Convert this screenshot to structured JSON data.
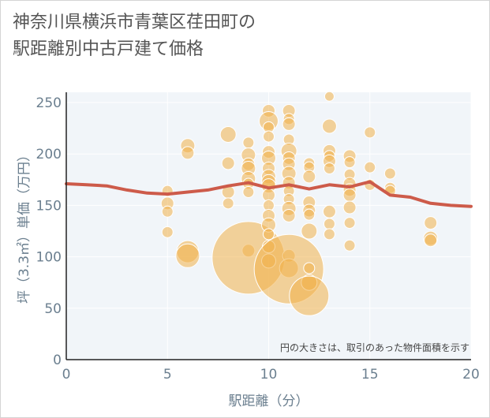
{
  "title": "神奈川県横浜市青葉区荏田町の\n駅距離別中古戸建て価格",
  "chart_data": {
    "type": "scatter",
    "title": "神奈川県横浜市青葉区荏田町の駅距離別中古戸建て価格",
    "xlabel": "駅距離（分）",
    "ylabel": "坪（3.3㎡）単価（万円）",
    "xlim": [
      0,
      20
    ],
    "ylim": [
      0,
      260
    ],
    "xticks": [
      0,
      5,
      10,
      15,
      20
    ],
    "yticks": [
      0,
      50,
      100,
      150,
      200,
      250
    ],
    "grid": true,
    "annotation": "円の大きさは、取引のあった物件面積を示す",
    "colors": {
      "bubble": "#f0b14a",
      "line": "#cd5b4a",
      "plot_bg": "#f1f5f9",
      "axis_text": "#6b7f8f"
    },
    "series": [
      {
        "type": "line",
        "points": [
          [
            0,
            171
          ],
          [
            1,
            170
          ],
          [
            2,
            169
          ],
          [
            3,
            165
          ],
          [
            4,
            162
          ],
          [
            5,
            161
          ],
          [
            6,
            163
          ],
          [
            7,
            165
          ],
          [
            8,
            169
          ],
          [
            9,
            172
          ],
          [
            10,
            167
          ],
          [
            11,
            170
          ],
          [
            12,
            166
          ],
          [
            13,
            170
          ],
          [
            14,
            168
          ],
          [
            15,
            173
          ],
          [
            16,
            160
          ],
          [
            17,
            158
          ],
          [
            18,
            152
          ],
          [
            19,
            150
          ],
          [
            20,
            149
          ]
        ]
      },
      {
        "type": "bubble",
        "points": [
          [
            5,
            164,
            7
          ],
          [
            5,
            152,
            8
          ],
          [
            5,
            144,
            7
          ],
          [
            5,
            124,
            7
          ],
          [
            6,
            208,
            9
          ],
          [
            6,
            201,
            8
          ],
          [
            6,
            105,
            14
          ],
          [
            6,
            101,
            15
          ],
          [
            8,
            219,
            10
          ],
          [
            8,
            191,
            8
          ],
          [
            8,
            163,
            8
          ],
          [
            8,
            152,
            7
          ],
          [
            9,
            211,
            7
          ],
          [
            9,
            199,
            9
          ],
          [
            9,
            190,
            8
          ],
          [
            9,
            186,
            9
          ],
          [
            9,
            176,
            9
          ],
          [
            9,
            171,
            7
          ],
          [
            9,
            163,
            7
          ],
          [
            9,
            106,
            8
          ],
          [
            9,
            99,
            46
          ],
          [
            10,
            242,
            8
          ],
          [
            10,
            232,
            12
          ],
          [
            10,
            226,
            7
          ],
          [
            10,
            217,
            7
          ],
          [
            10,
            202,
            8
          ],
          [
            10,
            196,
            9
          ],
          [
            10,
            186,
            8
          ],
          [
            10,
            178,
            9
          ],
          [
            10,
            173,
            9
          ],
          [
            10,
            169,
            9
          ],
          [
            10,
            160,
            8
          ],
          [
            10,
            150,
            7
          ],
          [
            10,
            140,
            8
          ],
          [
            10,
            131,
            9
          ],
          [
            10,
            122,
            7
          ],
          [
            10,
            110,
            8
          ],
          [
            10,
            96,
            9
          ],
          [
            11,
            242,
            8
          ],
          [
            11,
            234,
            7
          ],
          [
            11,
            229,
            8
          ],
          [
            11,
            214,
            7
          ],
          [
            11,
            203,
            10
          ],
          [
            11,
            196,
            8
          ],
          [
            11,
            190,
            8
          ],
          [
            11,
            181,
            9
          ],
          [
            11,
            172,
            8
          ],
          [
            11,
            164,
            7
          ],
          [
            11,
            156,
            7
          ],
          [
            11,
            147,
            9
          ],
          [
            11,
            140,
            8
          ],
          [
            11,
            101,
            8
          ],
          [
            11,
            89,
            12
          ],
          [
            11,
            88,
            44
          ],
          [
            12,
            191,
            7
          ],
          [
            12,
            187,
            7
          ],
          [
            12,
            178,
            8
          ],
          [
            12,
            153,
            8
          ],
          [
            12,
            145,
            8
          ],
          [
            12,
            141,
            7
          ],
          [
            12,
            125,
            10
          ],
          [
            12,
            89,
            7
          ],
          [
            12,
            75,
            10
          ],
          [
            12,
            62,
            25
          ],
          [
            13,
            256,
            6
          ],
          [
            13,
            227,
            9
          ],
          [
            13,
            203,
            8
          ],
          [
            13,
            198,
            7
          ],
          [
            13,
            193,
            8
          ],
          [
            13,
            186,
            7
          ],
          [
            13,
            144,
            8
          ],
          [
            13,
            132,
            7
          ],
          [
            13,
            122,
            7
          ],
          [
            14,
            198,
            8
          ],
          [
            14,
            192,
            7
          ],
          [
            14,
            180,
            7
          ],
          [
            14,
            171,
            8
          ],
          [
            14,
            165,
            8
          ],
          [
            14,
            160,
            8
          ],
          [
            14,
            148,
            8
          ],
          [
            14,
            133,
            7
          ],
          [
            14,
            111,
            7
          ],
          [
            15,
            221,
            7
          ],
          [
            15,
            187,
            7
          ],
          [
            15,
            170,
            7
          ],
          [
            16,
            181,
            7
          ],
          [
            16,
            167,
            7
          ],
          [
            16,
            164,
            7
          ],
          [
            18,
            133,
            8
          ],
          [
            18,
            118,
            9
          ],
          [
            18,
            116,
            8
          ]
        ]
      }
    ]
  }
}
